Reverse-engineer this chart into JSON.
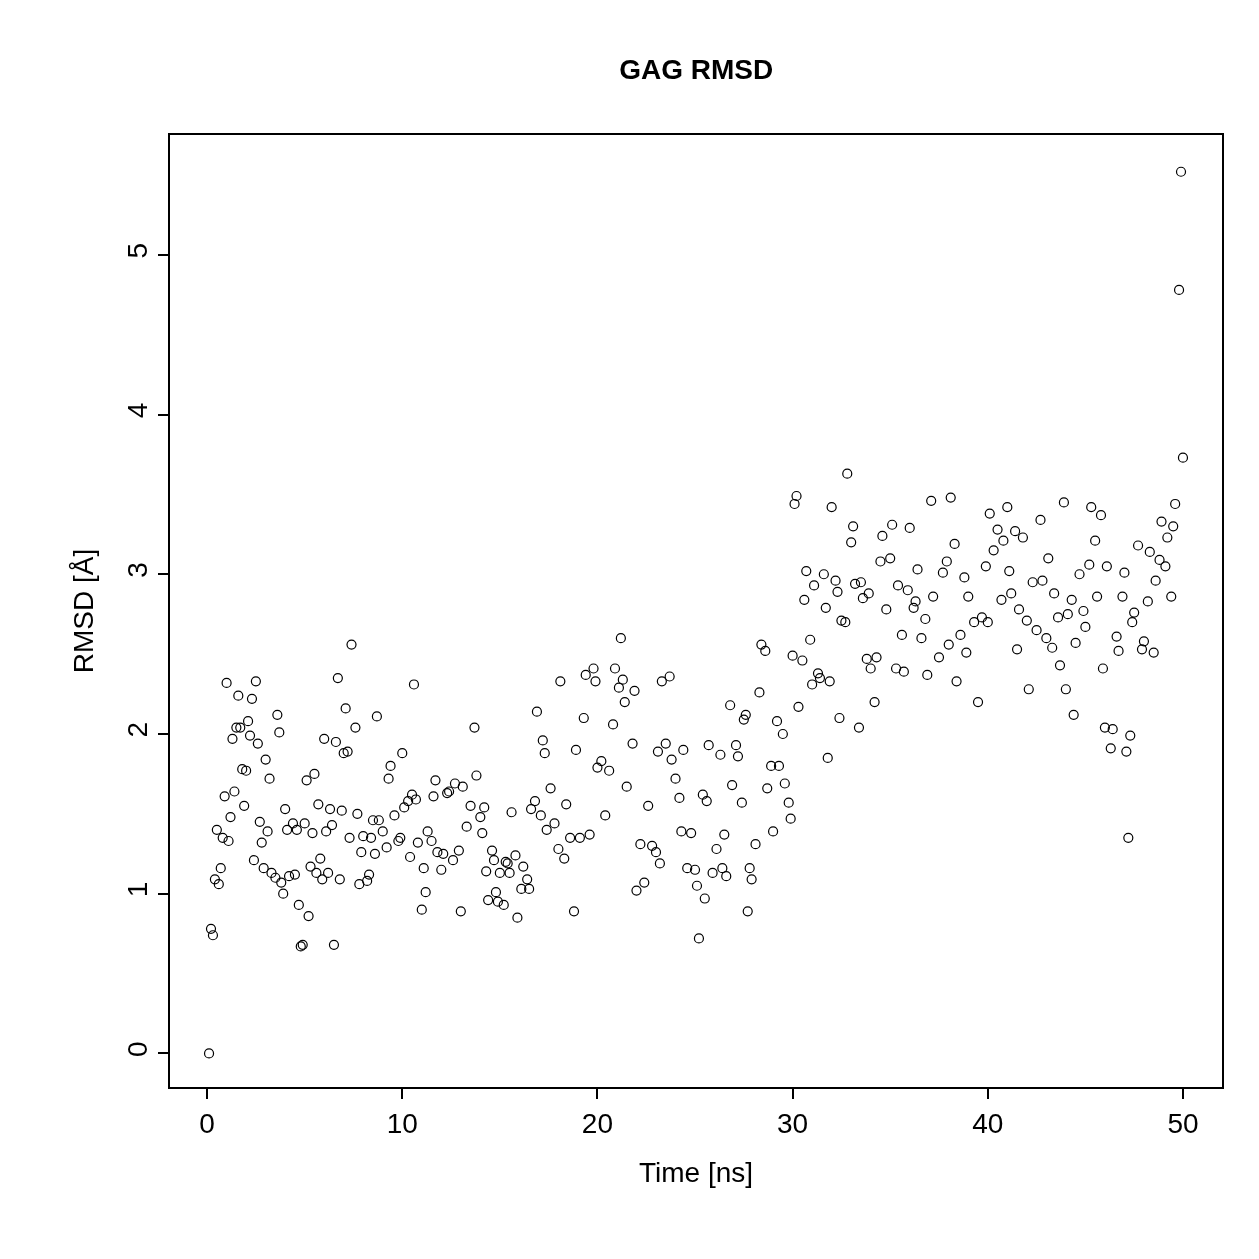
{
  "chart_data": {
    "type": "scatter",
    "title": "GAG RMSD",
    "xlabel": "Time [ns]",
    "ylabel": "RMSD [Å]",
    "xlim": [
      -1.9,
      52.0
    ],
    "ylim": [
      -0.21,
      5.75
    ],
    "xticks": [
      0,
      10,
      20,
      30,
      40,
      50
    ],
    "yticks": [
      0,
      1,
      2,
      3,
      4,
      5
    ],
    "marker": "circle",
    "series": [
      {
        "color": "#000000",
        "x": [
          0.1,
          0.2,
          0.3,
          0.4,
          0.5,
          0.6,
          0.7,
          0.8,
          0.9,
          1.0,
          1.1,
          1.2,
          1.3,
          1.4,
          1.5,
          1.6,
          1.7,
          1.8,
          1.9,
          2.0,
          2.1,
          2.2,
          2.3,
          2.4,
          2.5,
          2.6,
          2.7,
          2.8,
          2.9,
          3.0,
          3.1,
          3.2,
          3.3,
          3.5,
          3.6,
          3.7,
          3.8,
          3.9,
          4.0,
          4.1,
          4.2,
          4.4,
          4.5,
          4.6,
          4.7,
          4.8,
          4.9,
          5.0,
          5.1,
          5.2,
          5.3,
          5.4,
          5.5,
          5.6,
          5.7,
          5.8,
          5.9,
          6.0,
          6.1,
          6.2,
          6.3,
          6.4,
          6.5,
          6.6,
          6.7,
          6.8,
          6.9,
          7.0,
          7.1,
          7.2,
          7.3,
          7.4,
          7.6,
          7.7,
          7.8,
          7.9,
          8.0,
          8.2,
          8.3,
          8.4,
          8.5,
          8.6,
          8.7,
          8.8,
          9.0,
          9.2,
          9.3,
          9.4,
          9.6,
          9.8,
          9.9,
          10.0,
          10.1,
          10.3,
          10.4,
          10.5,
          10.6,
          10.7,
          10.8,
          11.0,
          11.1,
          11.2,
          11.3,
          11.5,
          11.6,
          11.7,
          11.8,
          12.0,
          12.1,
          12.3,
          12.4,
          12.6,
          12.7,
          12.9,
          13.0,
          13.1,
          13.3,
          13.5,
          13.7,
          13.8,
          14.0,
          14.1,
          14.2,
          14.3,
          14.4,
          14.6,
          14.7,
          14.8,
          14.9,
          15.0,
          15.2,
          15.3,
          15.4,
          15.5,
          15.6,
          15.8,
          15.9,
          16.1,
          16.2,
          16.4,
          16.5,
          16.6,
          16.8,
          16.9,
          17.1,
          17.2,
          17.3,
          17.4,
          17.6,
          17.8,
          18.0,
          18.1,
          18.3,
          18.4,
          18.6,
          18.8,
          18.9,
          19.1,
          19.3,
          19.4,
          19.6,
          19.8,
          19.9,
          20.0,
          20.2,
          20.4,
          20.6,
          20.8,
          20.9,
          21.1,
          21.2,
          21.3,
          21.4,
          21.5,
          21.8,
          21.9,
          22.0,
          22.2,
          22.4,
          22.6,
          22.8,
          23.0,
          23.1,
          23.2,
          23.3,
          23.5,
          23.7,
          23.8,
          24.0,
          24.2,
          24.3,
          24.4,
          24.6,
          24.8,
          25.0,
          25.1,
          25.2,
          25.4,
          25.5,
          25.6,
          25.7,
          25.9,
          26.1,
          26.3,
          26.4,
          26.5,
          26.6,
          26.8,
          26.9,
          27.1,
          27.2,
          27.4,
          27.5,
          27.6,
          27.7,
          27.8,
          27.9,
          28.1,
          28.3,
          28.4,
          28.6,
          28.7,
          28.9,
          29.0,
          29.2,
          29.3,
          29.5,
          29.6,
          29.8,
          29.9,
          30.0,
          30.1,
          30.2,
          30.3,
          30.5,
          30.6,
          30.7,
          30.9,
          31.0,
          31.1,
          31.3,
          31.4,
          31.6,
          31.7,
          31.8,
          31.9,
          32.0,
          32.2,
          32.3,
          32.4,
          32.5,
          32.7,
          32.8,
          33.0,
          33.1,
          33.2,
          33.4,
          33.5,
          33.6,
          33.8,
          33.9,
          34.0,
          34.2,
          34.3,
          34.5,
          34.6,
          34.8,
          35.0,
          35.1,
          35.3,
          35.4,
          35.6,
          35.7,
          35.9,
          36.0,
          36.2,
          36.3,
          36.4,
          36.6,
          36.8,
          36.9,
          37.1,
          37.2,
          37.5,
          37.7,
          37.9,
          38.0,
          38.1,
          38.3,
          38.4,
          38.6,
          38.8,
          38.9,
          39.0,
          39.3,
          39.5,
          39.7,
          39.9,
          40.0,
          40.1,
          40.3,
          40.5,
          40.7,
          40.8,
          41.0,
          41.1,
          41.2,
          41.4,
          41.5,
          41.6,
          41.8,
          42.0,
          42.1,
          42.3,
          42.5,
          42.7,
          42.8,
          43.0,
          43.1,
          43.3,
          43.4,
          43.6,
          43.7,
          43.9,
          44.0,
          44.1,
          44.3,
          44.4,
          44.5,
          44.7,
          44.9,
          45.0,
          45.2,
          45.3,
          45.5,
          45.6,
          45.8,
          45.9,
          46.0,
          46.1,
          46.3,
          46.4,
          46.6,
          46.7,
          46.9,
          47.0,
          47.1,
          47.2,
          47.3,
          47.4,
          47.5,
          47.7,
          47.9,
          48.0,
          48.2,
          48.3,
          48.5,
          48.6,
          48.8,
          48.9,
          49.1,
          49.2,
          49.4,
          49.5,
          49.6,
          49.8,
          49.9,
          50.0
        ],
        "values": [
          0.0,
          0.78,
          0.74,
          1.09,
          1.4,
          1.06,
          1.16,
          1.35,
          1.61,
          2.32,
          1.33,
          1.48,
          1.97,
          1.64,
          2.04,
          2.24,
          2.04,
          1.78,
          1.55,
          1.77,
          2.08,
          1.99,
          2.22,
          1.21,
          2.33,
          1.94,
          1.45,
          1.32,
          1.16,
          1.84,
          1.39,
          1.72,
          1.13,
          1.1,
          2.12,
          2.01,
          1.07,
          1.0,
          1.53,
          1.4,
          1.11,
          1.44,
          1.12,
          1.4,
          0.93,
          0.67,
          0.68,
          1.44,
          1.71,
          0.86,
          1.17,
          1.38,
          1.75,
          1.13,
          1.56,
          1.22,
          1.09,
          1.97,
          1.39,
          1.13,
          1.53,
          1.43,
          0.68,
          1.95,
          2.35,
          1.09,
          1.52,
          1.88,
          2.16,
          1.89,
          1.35,
          2.56,
          2.04,
          1.5,
          1.06,
          1.26,
          1.36,
          1.08,
          1.12,
          1.35,
          1.46,
          1.25,
          2.11,
          1.46,
          1.39,
          1.29,
          1.72,
          1.8,
          1.49,
          1.33,
          1.35,
          1.88,
          1.54,
          1.58,
          1.23,
          1.62,
          2.31,
          1.59,
          1.32,
          0.9,
          1.16,
          1.01,
          1.39,
          1.33,
          1.61,
          1.71,
          1.26,
          1.15,
          1.25,
          1.63,
          1.64,
          1.21,
          1.69,
          1.27,
          0.89,
          1.67,
          1.42,
          1.55,
          2.04,
          1.74,
          1.48,
          1.38,
          1.54,
          1.14,
          0.96,
          1.27,
          1.21,
          1.01,
          0.95,
          1.13,
          0.93,
          1.2,
          1.19,
          1.13,
          1.51,
          1.24,
          0.85,
          1.03,
          1.17,
          1.09,
          1.03,
          1.53,
          1.58,
          2.14,
          1.49,
          1.96,
          1.88,
          1.4,
          1.66,
          1.44,
          1.28,
          2.33,
          1.22,
          1.56,
          1.35,
          0.89,
          1.9,
          1.35,
          2.1,
          2.37,
          1.37,
          2.41,
          2.33,
          1.79,
          1.83,
          1.49,
          1.77,
          2.06,
          2.41,
          2.29,
          2.6,
          2.34,
          2.2,
          1.67,
          1.94,
          2.27,
          1.02,
          1.31,
          1.07,
          1.55,
          1.3,
          1.26,
          1.89,
          1.19,
          2.33,
          1.94,
          2.36,
          1.84,
          1.72,
          1.6,
          1.39,
          1.9,
          1.16,
          1.38,
          1.15,
          1.05,
          0.72,
          1.62,
          0.97,
          1.58,
          1.93,
          1.13,
          1.28,
          1.87,
          1.16,
          1.37,
          1.11,
          2.18,
          1.68,
          1.93,
          1.86,
          1.57,
          2.09,
          2.12,
          0.89,
          1.16,
          1.09,
          1.31,
          2.26,
          2.56,
          2.52,
          1.66,
          1.8,
          1.39,
          2.08,
          1.8,
          2.0,
          1.69,
          1.57,
          1.47,
          2.49,
          3.44,
          3.49,
          2.17,
          2.46,
          2.84,
          3.02,
          2.59,
          2.31,
          2.93,
          2.38,
          2.35,
          3.0,
          2.79,
          1.85,
          2.33,
          3.42,
          2.96,
          2.89,
          2.1,
          2.71,
          2.7,
          3.63,
          3.2,
          3.3,
          2.94,
          2.04,
          2.95,
          2.85,
          2.47,
          2.88,
          2.41,
          2.2,
          2.48,
          3.08,
          3.24,
          2.78,
          3.1,
          3.31,
          2.41,
          2.93,
          2.62,
          2.39,
          2.9,
          3.29,
          2.79,
          2.83,
          3.03,
          2.6,
          2.72,
          2.37,
          3.46,
          2.86,
          2.48,
          3.01,
          3.08,
          2.56,
          3.48,
          3.19,
          2.33,
          2.62,
          2.98,
          2.51,
          2.86,
          2.7,
          2.2,
          2.73,
          3.05,
          2.7,
          3.38,
          3.15,
          3.28,
          2.84,
          3.21,
          3.42,
          3.02,
          2.88,
          3.27,
          2.53,
          2.78,
          3.23,
          2.71,
          2.28,
          2.95,
          2.65,
          3.34,
          2.96,
          2.6,
          3.1,
          2.54,
          2.88,
          2.73,
          2.43,
          3.45,
          2.28,
          2.75,
          2.84,
          2.12,
          2.57,
          3.0,
          2.77,
          2.67,
          3.06,
          3.42,
          3.21,
          2.86,
          3.37,
          2.41,
          2.04,
          3.05,
          1.91,
          2.03,
          2.61,
          2.52,
          2.86,
          3.01,
          1.89,
          1.35,
          1.99,
          2.7,
          2.76,
          3.18,
          2.53,
          2.58,
          2.83,
          3.14,
          2.51,
          2.96,
          3.09,
          3.33,
          3.05,
          3.23,
          2.86,
          3.3,
          3.44,
          4.78,
          5.52,
          3.73
        ]
      }
    ]
  }
}
